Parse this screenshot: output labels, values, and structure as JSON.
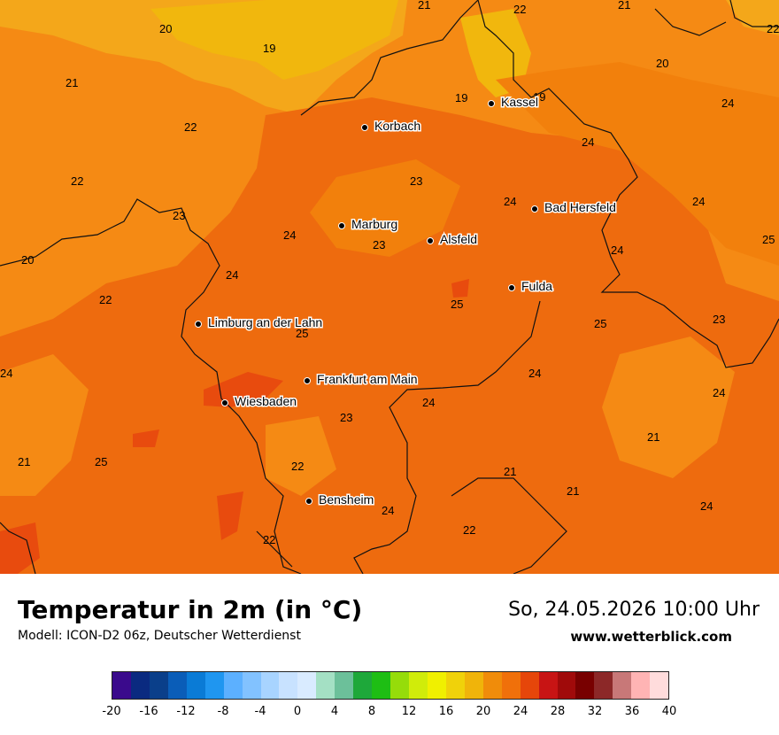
{
  "title": "Temperatur in 2m (in °C)",
  "model": "Modell: ICON-D2 06z, Deutscher Wetterdienst",
  "datetime": "So, 24.05.2026 10:00 Uhr",
  "site": "www.wetterblick.com",
  "cities": [
    {
      "name": "Kassel"
    },
    {
      "name": "Korbach"
    },
    {
      "name": "Bad Hersfeld"
    },
    {
      "name": "Marburg"
    },
    {
      "name": "Alsfeld"
    },
    {
      "name": "Fulda"
    },
    {
      "name": "Limburg an der Lahn"
    },
    {
      "name": "Frankfurt am Main"
    },
    {
      "name": "Wiesbaden"
    },
    {
      "name": "Bensheim"
    }
  ],
  "temperature_labels": [
    "20",
    "21",
    "22",
    "21",
    "19",
    "21",
    "22",
    "19",
    "19",
    "24",
    "22",
    "23",
    "22",
    "23",
    "24",
    "24",
    "20",
    "24",
    "25",
    "24",
    "20",
    "24",
    "22",
    "23",
    "25",
    "25",
    "24",
    "23",
    "24",
    "24",
    "21",
    "25",
    "24",
    "21",
    "22",
    "21",
    "23",
    "25",
    "24",
    "24",
    "24",
    "22",
    "22",
    "21"
  ],
  "colorbar": {
    "ticks": [
      "-20",
      "-16",
      "-12",
      "-8",
      "-4",
      "0",
      "4",
      "8",
      "12",
      "16",
      "20",
      "24",
      "28",
      "32",
      "36",
      "40"
    ],
    "colors": [
      "#3a0a8c",
      "#0a2a80",
      "#0a3f8a",
      "#0a5db8",
      "#0a7bd6",
      "#1f96f0",
      "#5cb0ff",
      "#82c2ff",
      "#a8d4ff",
      "#c8e2ff",
      "#d9ebff",
      "#a4e0c4",
      "#6cc09a",
      "#1ea83a",
      "#1ebe14",
      "#96dc0a",
      "#d0ec0a",
      "#f0f000",
      "#f0d20a",
      "#f0b40a",
      "#f08c0a",
      "#f0700a",
      "#e6460a",
      "#c81414",
      "#a00a0a",
      "#780000",
      "#8c2828",
      "#c87878",
      "#ffb4b4",
      "#ffdcdc"
    ]
  },
  "legend_colors": {
    "c19": "#f1b70d",
    "c20": "#f4a71a",
    "c21": "#f49a16",
    "c22": "#f58a14",
    "c23": "#f2800c",
    "c24": "#ee6b0e",
    "c25": "#e84b0e"
  }
}
